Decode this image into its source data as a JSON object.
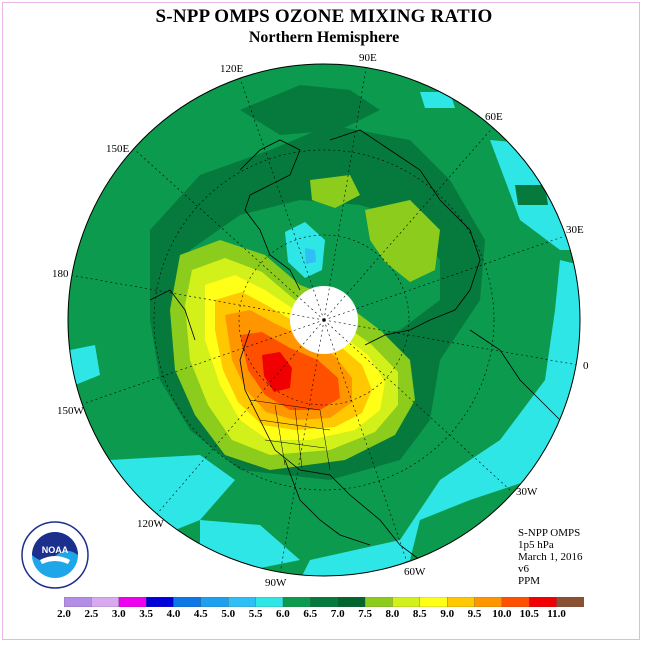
{
  "title": "S-NPP OMPS OZONE MIXING RATIO",
  "subtitle": "Northern Hemisphere",
  "longitude_labels": {
    "e90": "90E",
    "e120": "120E",
    "e60": "60E",
    "e150": "150E",
    "e30": "30E",
    "l180": "180",
    "l0": "0",
    "w150": "150W",
    "w30": "30W",
    "w120": "120W",
    "w60": "60W",
    "w90": "90W"
  },
  "info": {
    "instrument": "S-NPP OMPS",
    "level": "1p5 hPa",
    "date": "March 1, 2016",
    "version": "v6",
    "units": "PPM"
  },
  "logo": {
    "text": "NOAA",
    "ring_text": "NATIONAL OCEANIC AND ATMOSPHERIC ADMINISTRATION · U.S. DEPARTMENT OF COMMERCE"
  },
  "colorbar": {
    "labels": [
      "2.0",
      "2.5",
      "3.0",
      "3.5",
      "4.0",
      "4.5",
      "5.0",
      "5.5",
      "6.0",
      "6.5",
      "7.0",
      "7.5",
      "8.0",
      "8.5",
      "9.0",
      "9.5",
      "10.0",
      "10.5",
      "11.0"
    ],
    "colors": [
      "#b38de6",
      "#d8a8f0",
      "#ee00ee",
      "#0000d8",
      "#0c78e8",
      "#1ea0f0",
      "#30bef6",
      "#2ee6e6",
      "#0b9a4e",
      "#067a3c",
      "#04642e",
      "#8ccc1c",
      "#d2f01a",
      "#ffff18",
      "#ffc800",
      "#ff9600",
      "#ff5000",
      "#f00000",
      "#8a5032"
    ]
  },
  "legend_colors": {
    "cyan": "#2ee6e6",
    "green": "#0b9a4e",
    "dark_green": "#067a3c",
    "light_green": "#8ccc1c",
    "yellow_green": "#d2f01a",
    "yellow": "#ffff18",
    "orange": "#ffc800",
    "dark_orange": "#ff9600",
    "red_orange": "#ff5000",
    "red": "#f00000"
  }
}
